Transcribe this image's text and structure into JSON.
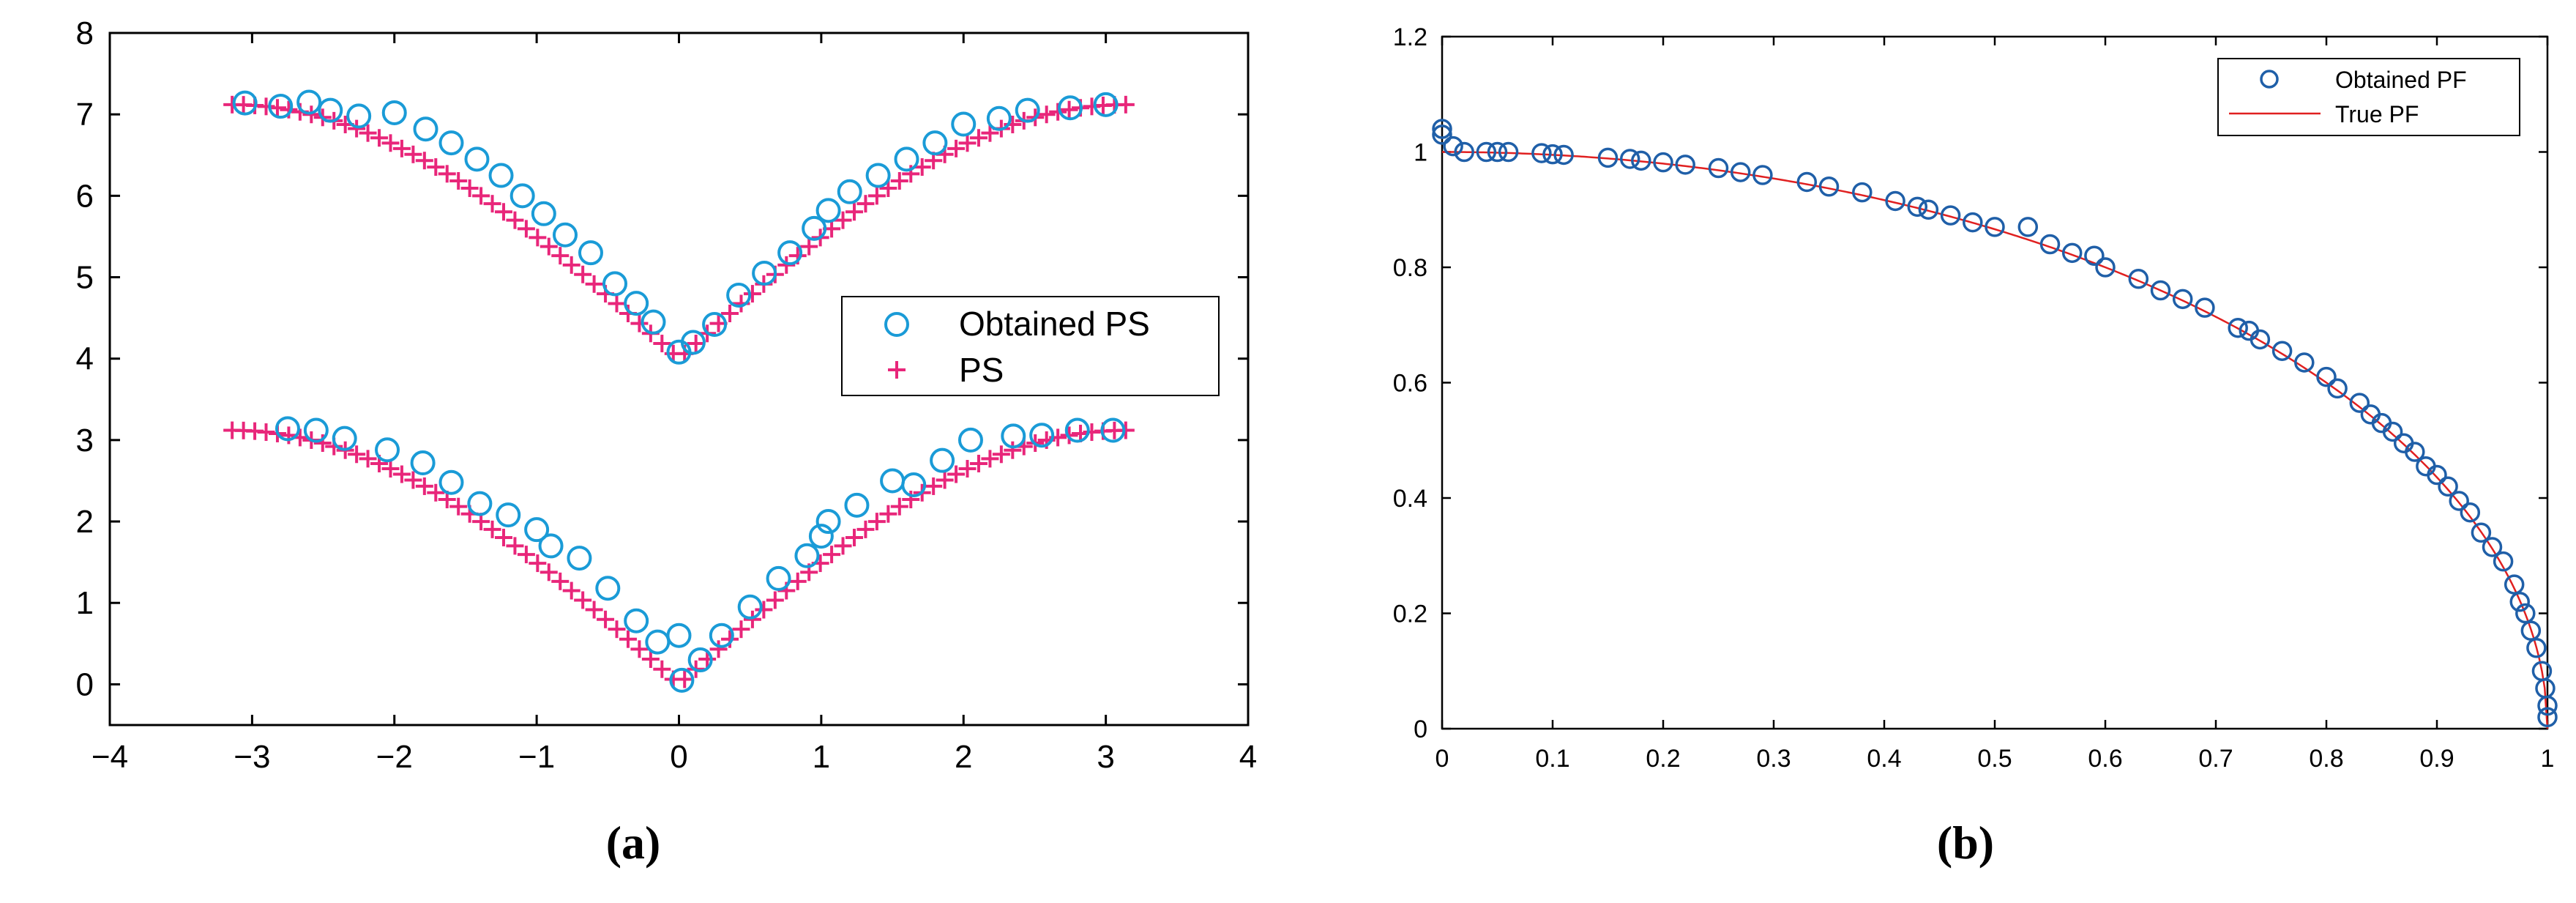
{
  "chart_data": [
    {
      "type": "scatter",
      "panel_label": "(a)",
      "title": "",
      "xlabel": "",
      "ylabel": "",
      "xlim": [
        -4,
        4
      ],
      "ylim": [
        -0.5,
        8
      ],
      "x_ticks": [
        -4,
        -3,
        -2,
        -1,
        0,
        1,
        2,
        3,
        4
      ],
      "x_tick_labels": [
        "−4",
        "−3",
        "−2",
        "−1",
        "0",
        "1",
        "2",
        "3",
        "4"
      ],
      "y_ticks": [
        0,
        1,
        2,
        3,
        4,
        5,
        6,
        7,
        8
      ],
      "y_tick_labels": [
        "0",
        "1",
        "2",
        "3",
        "4",
        "5",
        "6",
        "7",
        "8"
      ],
      "grid": false,
      "legend_position": "center-right",
      "series": [
        {
          "name": "Obtained PS",
          "marker": "circle",
          "color": "#1a9bd7",
          "points": [
            [
              -3.05,
              7.14
            ],
            [
              -2.8,
              7.1
            ],
            [
              -2.6,
              7.15
            ],
            [
              -2.45,
              7.05
            ],
            [
              -2.25,
              6.98
            ],
            [
              -2.0,
              7.02
            ],
            [
              -1.78,
              6.82
            ],
            [
              -1.6,
              6.65
            ],
            [
              -1.42,
              6.45
            ],
            [
              -1.25,
              6.25
            ],
            [
              -1.1,
              6.0
            ],
            [
              -0.95,
              5.78
            ],
            [
              -0.8,
              5.52
            ],
            [
              -0.62,
              5.3
            ],
            [
              -0.45,
              4.92
            ],
            [
              -0.3,
              4.68
            ],
            [
              -0.18,
              4.45
            ],
            [
              0.0,
              4.08
            ],
            [
              0.1,
              4.2
            ],
            [
              0.25,
              4.42
            ],
            [
              0.42,
              4.78
            ],
            [
              0.6,
              5.05
            ],
            [
              0.78,
              5.3
            ],
            [
              0.95,
              5.6
            ],
            [
              1.05,
              5.82
            ],
            [
              1.2,
              6.05
            ],
            [
              1.4,
              6.25
            ],
            [
              1.6,
              6.45
            ],
            [
              1.8,
              6.65
            ],
            [
              2.0,
              6.88
            ],
            [
              2.25,
              6.95
            ],
            [
              2.45,
              7.05
            ],
            [
              2.75,
              7.08
            ],
            [
              3.0,
              7.12
            ],
            [
              -2.75,
              3.14
            ],
            [
              -2.55,
              3.12
            ],
            [
              -2.35,
              3.02
            ],
            [
              -2.05,
              2.88
            ],
            [
              -1.8,
              2.72
            ],
            [
              -1.6,
              2.48
            ],
            [
              -1.4,
              2.22
            ],
            [
              -1.2,
              2.08
            ],
            [
              -1.0,
              1.9
            ],
            [
              -0.9,
              1.7
            ],
            [
              -0.7,
              1.55
            ],
            [
              -0.5,
              1.18
            ],
            [
              -0.3,
              0.78
            ],
            [
              -0.15,
              0.52
            ],
            [
              0.0,
              0.6
            ],
            [
              0.02,
              0.05
            ],
            [
              0.15,
              0.3
            ],
            [
              0.3,
              0.6
            ],
            [
              0.5,
              0.95
            ],
            [
              0.7,
              1.3
            ],
            [
              0.9,
              1.58
            ],
            [
              1.0,
              1.82
            ],
            [
              1.05,
              2.0
            ],
            [
              1.25,
              2.2
            ],
            [
              1.5,
              2.5
            ],
            [
              1.65,
              2.45
            ],
            [
              1.85,
              2.75
            ],
            [
              2.05,
              3.0
            ],
            [
              2.35,
              3.05
            ],
            [
              2.55,
              3.06
            ],
            [
              2.8,
              3.12
            ],
            [
              3.05,
              3.12
            ]
          ]
        },
        {
          "name": "PS",
          "marker": "plus",
          "color": "#e8267a",
          "sets": [
            {
              "x_range": [
                -3.14,
                3.14
              ],
              "count": 80,
              "offset": 4.0,
              "amplitude": 3.14
            }
          ],
          "set_offsets": [
            0,
            4
          ]
        }
      ],
      "legend": [
        "Obtained PS",
        "PS"
      ]
    },
    {
      "type": "scatter",
      "panel_label": "(b)",
      "title": "",
      "xlabel": "",
      "ylabel": "",
      "xlim": [
        0,
        1
      ],
      "ylim": [
        0,
        1.2
      ],
      "x_ticks": [
        0,
        0.1,
        0.2,
        0.3,
        0.4,
        0.5,
        0.6,
        0.7,
        0.8,
        0.9,
        1
      ],
      "x_tick_labels": [
        "0",
        "0.1",
        "0.2",
        "0.3",
        "0.4",
        "0.5",
        "0.6",
        "0.7",
        "0.8",
        "0.9",
        "1"
      ],
      "y_ticks": [
        0,
        0.2,
        0.4,
        0.6,
        0.8,
        1,
        1.2
      ],
      "y_tick_labels": [
        "0",
        "0.2",
        "0.4",
        "0.6",
        "0.8",
        "1",
        "1.2"
      ],
      "grid": false,
      "legend_position": "top-right",
      "series": [
        {
          "name": "Obtained PF",
          "marker": "circle",
          "color": "#1f5fa8",
          "points": [
            [
              0.0,
              1.04
            ],
            [
              0.0,
              1.03
            ],
            [
              0.01,
              1.01
            ],
            [
              0.02,
              1.0
            ],
            [
              0.04,
              1.0
            ],
            [
              0.05,
              1.0
            ],
            [
              0.06,
              1.0
            ],
            [
              0.09,
              0.998
            ],
            [
              0.1,
              0.996
            ],
            [
              0.11,
              0.995
            ],
            [
              0.15,
              0.99
            ],
            [
              0.17,
              0.988
            ],
            [
              0.18,
              0.985
            ],
            [
              0.2,
              0.982
            ],
            [
              0.22,
              0.978
            ],
            [
              0.25,
              0.972
            ],
            [
              0.27,
              0.965
            ],
            [
              0.29,
              0.96
            ],
            [
              0.33,
              0.948
            ],
            [
              0.35,
              0.94
            ],
            [
              0.38,
              0.93
            ],
            [
              0.41,
              0.915
            ],
            [
              0.43,
              0.905
            ],
            [
              0.44,
              0.9
            ],
            [
              0.46,
              0.89
            ],
            [
              0.48,
              0.878
            ],
            [
              0.5,
              0.87
            ],
            [
              0.53,
              0.87
            ],
            [
              0.55,
              0.84
            ],
            [
              0.57,
              0.825
            ],
            [
              0.59,
              0.82
            ],
            [
              0.6,
              0.8
            ],
            [
              0.63,
              0.78
            ],
            [
              0.65,
              0.76
            ],
            [
              0.67,
              0.745
            ],
            [
              0.69,
              0.73
            ],
            [
              0.72,
              0.695
            ],
            [
              0.73,
              0.69
            ],
            [
              0.74,
              0.675
            ],
            [
              0.76,
              0.655
            ],
            [
              0.78,
              0.635
            ],
            [
              0.8,
              0.61
            ],
            [
              0.81,
              0.59
            ],
            [
              0.83,
              0.565
            ],
            [
              0.84,
              0.545
            ],
            [
              0.85,
              0.53
            ],
            [
              0.86,
              0.515
            ],
            [
              0.87,
              0.495
            ],
            [
              0.88,
              0.48
            ],
            [
              0.89,
              0.455
            ],
            [
              0.9,
              0.44
            ],
            [
              0.91,
              0.42
            ],
            [
              0.92,
              0.395
            ],
            [
              0.93,
              0.375
            ],
            [
              0.94,
              0.34
            ],
            [
              0.95,
              0.315
            ],
            [
              0.96,
              0.29
            ],
            [
              0.97,
              0.25
            ],
            [
              0.975,
              0.22
            ],
            [
              0.98,
              0.2
            ],
            [
              0.985,
              0.17
            ],
            [
              0.99,
              0.14
            ],
            [
              0.995,
              0.1
            ],
            [
              0.998,
              0.07
            ],
            [
              1.0,
              0.04
            ],
            [
              1.0,
              0.02
            ]
          ]
        },
        {
          "name": "True PF",
          "marker": "line",
          "color": "#e02020",
          "curve": "y = sqrt(1 - x^2)"
        }
      ],
      "legend": [
        "Obtained PF",
        "True PF"
      ]
    }
  ],
  "labels": {
    "panel_a": "(a)",
    "panel_b": "(b)",
    "legend_a_1": "Obtained PS",
    "legend_a_2": "PS",
    "legend_b_1": "Obtained PF",
    "legend_b_2": "True PF"
  },
  "colors": {
    "obtained_ps": "#1a9bd7",
    "ps": "#e8267a",
    "obtained_pf": "#1f5fa8",
    "true_pf": "#e02020"
  }
}
